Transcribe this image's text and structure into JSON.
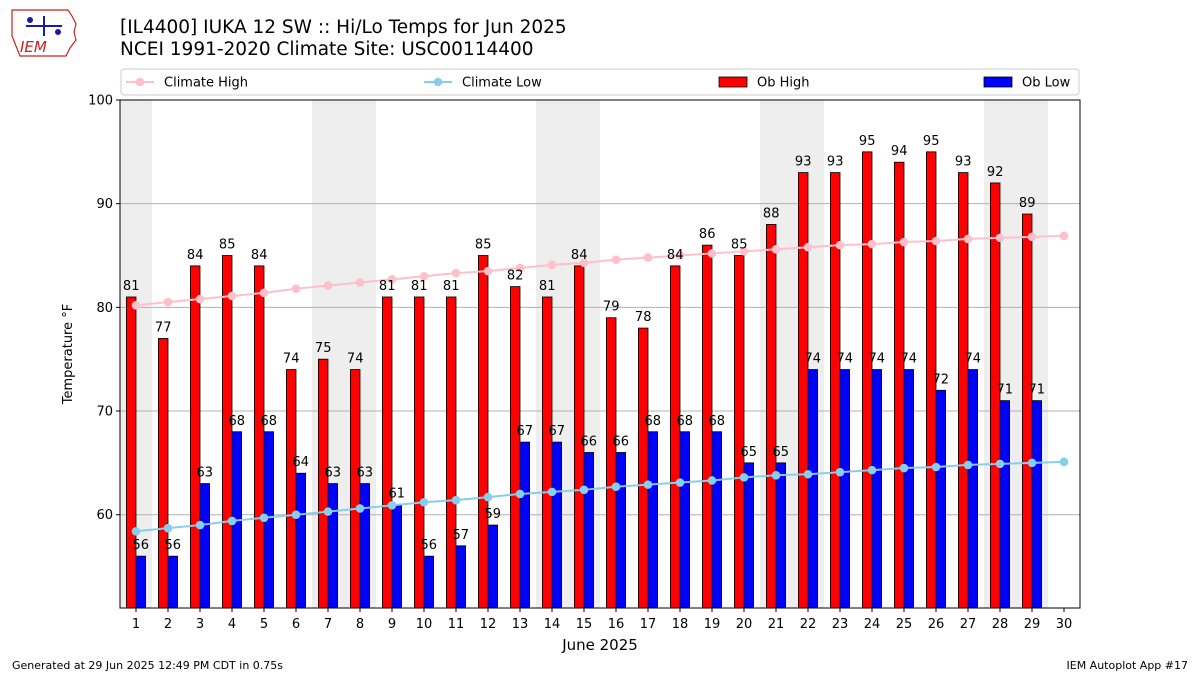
{
  "header": {
    "title_line1": "[IL4400] IUKA 12 SW :: Hi/Lo Temps for Jun 2025",
    "title_line2": "NCEI 1991-2020 Climate Site: USC00114400",
    "logo_text": "IEM"
  },
  "footer": {
    "generated": "Generated at 29 Jun 2025 12:49 PM CDT in 0.75s",
    "app": "IEM Autoplot App #17"
  },
  "colors": {
    "ob_high": "#ff0000",
    "ob_low": "#0000ff",
    "climate_high": "#ffc0cb",
    "climate_low": "#87ceeb",
    "weekend_band": "#eeeeee"
  },
  "chart_data": {
    "type": "bar",
    "xlabel": "June 2025",
    "ylabel": "Temperature °F",
    "ylim": [
      51,
      100
    ],
    "yticks": [
      60,
      70,
      80,
      90,
      100
    ],
    "grid": "horizontal",
    "legend_placement": "top",
    "legend": [
      "Climate High",
      "Climate Low",
      "Ob High",
      "Ob Low"
    ],
    "days": [
      1,
      2,
      3,
      4,
      5,
      6,
      7,
      8,
      9,
      10,
      11,
      12,
      13,
      14,
      15,
      16,
      17,
      18,
      19,
      20,
      21,
      22,
      23,
      24,
      25,
      26,
      27,
      28,
      29,
      30
    ],
    "shaded_days": [
      1,
      7,
      8,
      14,
      15,
      21,
      22,
      28,
      29
    ],
    "series": [
      {
        "name": "Ob High",
        "kind": "bar",
        "values": [
          81,
          77,
          84,
          85,
          84,
          74,
          75,
          74,
          81,
          81,
          81,
          85,
          82,
          81,
          84,
          79,
          78,
          84,
          86,
          85,
          88,
          93,
          93,
          95,
          94,
          95,
          93,
          92,
          89,
          null
        ]
      },
      {
        "name": "Ob Low",
        "kind": "bar",
        "values": [
          56,
          56,
          63,
          68,
          68,
          64,
          63,
          63,
          61,
          56,
          57,
          59,
          67,
          67,
          66,
          66,
          68,
          68,
          68,
          65,
          65,
          74,
          74,
          74,
          74,
          72,
          74,
          71,
          71,
          null
        ]
      },
      {
        "name": "Climate High",
        "kind": "line",
        "values": [
          80.2,
          80.5,
          80.8,
          81.1,
          81.4,
          81.8,
          82.1,
          82.4,
          82.7,
          83.0,
          83.3,
          83.5,
          83.8,
          84.1,
          84.3,
          84.6,
          84.8,
          85.0,
          85.2,
          85.4,
          85.6,
          85.8,
          86.0,
          86.1,
          86.3,
          86.4,
          86.6,
          86.7,
          86.8,
          86.9
        ]
      },
      {
        "name": "Climate Low",
        "kind": "line",
        "values": [
          58.4,
          58.7,
          59.0,
          59.4,
          59.7,
          60.0,
          60.3,
          60.6,
          60.9,
          61.2,
          61.4,
          61.7,
          62.0,
          62.2,
          62.4,
          62.7,
          62.9,
          63.1,
          63.3,
          63.6,
          63.8,
          63.9,
          64.1,
          64.3,
          64.5,
          64.6,
          64.8,
          64.9,
          65.0,
          65.1
        ]
      }
    ]
  }
}
